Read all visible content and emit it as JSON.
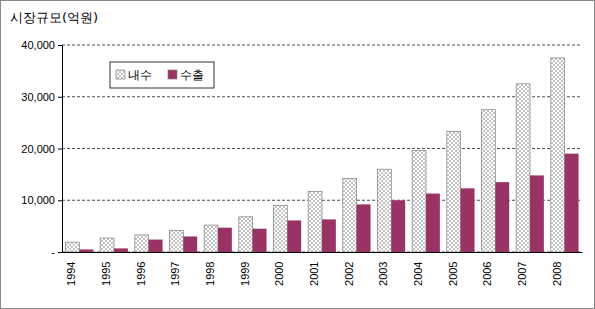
{
  "chart_data": {
    "type": "bar",
    "ylabel": "시장규모(억원)",
    "categories": [
      "1994",
      "1995",
      "1996",
      "1997",
      "1998",
      "1999",
      "2000",
      "2001",
      "2002",
      "2003",
      "2004",
      "2005",
      "2006",
      "2007",
      "2008"
    ],
    "series": [
      {
        "name": "내수",
        "color": "#ffffff",
        "values": [
          1900,
          2700,
          3300,
          4200,
          5200,
          6800,
          9000,
          11700,
          14200,
          16000,
          19600,
          23300,
          27500,
          32500,
          37500
        ]
      },
      {
        "name": "수출",
        "color": "#993366",
        "values": [
          500,
          700,
          2400,
          3000,
          4700,
          4500,
          6100,
          6300,
          9200,
          10000,
          11300,
          12300,
          13500,
          14800,
          19000
        ]
      }
    ],
    "ylim": [
      0,
      40000
    ],
    "yticks": [
      {
        "value": 0,
        "label": "-"
      },
      {
        "value": 10000,
        "label": "10,000"
      },
      {
        "value": 20000,
        "label": "20,000"
      },
      {
        "value": 30000,
        "label": "30,000"
      },
      {
        "value": 40000,
        "label": "40,000"
      }
    ],
    "grid": true,
    "legend": "upper left"
  }
}
